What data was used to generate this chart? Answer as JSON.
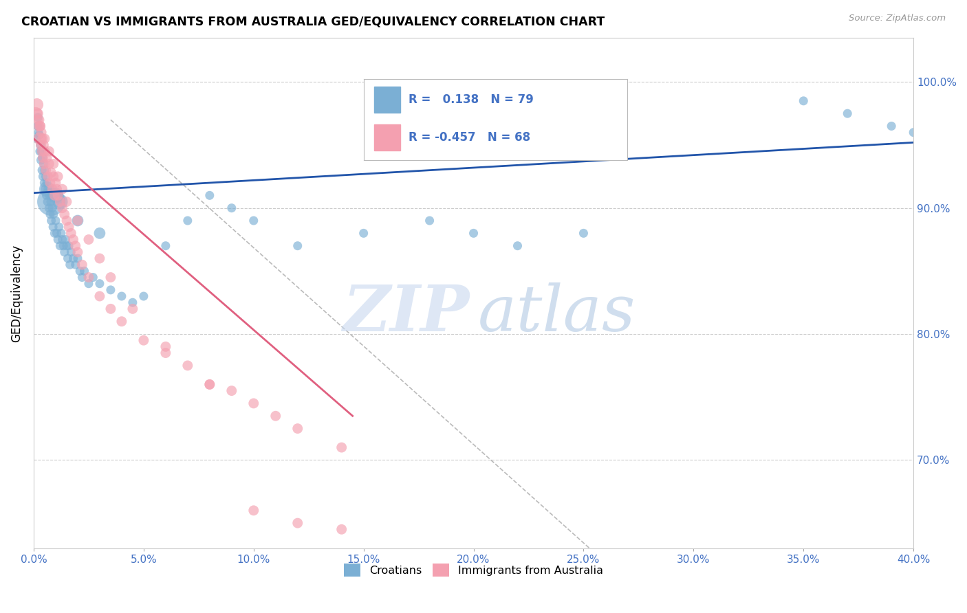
{
  "title": "CROATIAN VS IMMIGRANTS FROM AUSTRALIA GED/EQUIVALENCY CORRELATION CHART",
  "source": "Source: ZipAtlas.com",
  "ylabel": "GED/Equivalency",
  "blue_color": "#7BAFD4",
  "pink_color": "#F4A0B0",
  "blue_line_color": "#2255AA",
  "pink_line_color": "#E06080",
  "xlim": [
    0.0,
    40.0
  ],
  "ylim": [
    63.0,
    103.5
  ],
  "ytick_vals": [
    70.0,
    80.0,
    90.0,
    100.0
  ],
  "xtick_vals": [
    0.0,
    5.0,
    10.0,
    15.0,
    20.0,
    25.0,
    30.0,
    35.0,
    40.0
  ],
  "blue_trend": [
    0.0,
    91.2,
    40.0,
    95.2
  ],
  "pink_trend": [
    0.0,
    95.5,
    14.5,
    73.5
  ],
  "dash_line": [
    3.5,
    97.0,
    40.0,
    40.0
  ],
  "croatians_x": [
    0.15,
    0.18,
    0.2,
    0.22,
    0.25,
    0.28,
    0.3,
    0.33,
    0.35,
    0.38,
    0.4,
    0.42,
    0.45,
    0.48,
    0.5,
    0.52,
    0.55,
    0.58,
    0.6,
    0.63,
    0.65,
    0.7,
    0.72,
    0.75,
    0.78,
    0.8,
    0.85,
    0.88,
    0.9,
    0.95,
    1.0,
    1.05,
    1.1,
    1.15,
    1.2,
    1.25,
    1.3,
    1.35,
    1.4,
    1.45,
    1.5,
    1.55,
    1.6,
    1.65,
    1.7,
    1.8,
    1.9,
    2.0,
    2.1,
    2.2,
    2.3,
    2.5,
    2.7,
    3.0,
    3.5,
    4.0,
    4.5,
    5.0,
    6.0,
    7.0,
    8.0,
    9.0,
    10.0,
    12.0,
    15.0,
    18.0,
    20.0,
    22.0,
    25.0,
    35.0,
    37.0,
    39.0,
    40.0,
    0.6,
    0.8,
    1.0,
    1.2,
    2.0,
    3.0
  ],
  "croatians_y": [
    95.5,
    96.5,
    97.2,
    96.0,
    95.8,
    94.5,
    95.0,
    93.8,
    94.5,
    93.0,
    94.0,
    92.5,
    93.5,
    92.0,
    93.0,
    91.5,
    92.5,
    91.0,
    92.0,
    90.5,
    91.5,
    90.0,
    91.0,
    89.5,
    90.5,
    89.0,
    90.0,
    88.5,
    89.5,
    88.0,
    89.0,
    88.0,
    87.5,
    88.5,
    87.0,
    88.0,
    87.5,
    87.0,
    86.5,
    87.5,
    87.0,
    86.0,
    87.0,
    85.5,
    86.5,
    86.0,
    85.5,
    86.0,
    85.0,
    84.5,
    85.0,
    84.0,
    84.5,
    84.0,
    83.5,
    83.0,
    82.5,
    83.0,
    87.0,
    89.0,
    91.0,
    90.0,
    89.0,
    87.0,
    88.0,
    89.0,
    88.0,
    87.0,
    88.0,
    98.5,
    97.5,
    96.5,
    96.0,
    91.5,
    90.5,
    91.0,
    90.5,
    89.0,
    88.0
  ],
  "croatians_size": [
    7,
    7,
    7,
    7,
    7,
    7,
    7,
    7,
    7,
    7,
    7,
    7,
    7,
    7,
    7,
    7,
    7,
    7,
    7,
    7,
    7,
    7,
    7,
    7,
    7,
    7,
    7,
    7,
    7,
    7,
    7,
    7,
    7,
    7,
    7,
    7,
    7,
    7,
    7,
    7,
    7,
    7,
    7,
    7,
    7,
    7,
    7,
    7,
    7,
    7,
    7,
    7,
    7,
    7,
    7,
    7,
    7,
    7,
    7,
    7,
    7,
    7,
    7,
    7,
    7,
    7,
    7,
    7,
    7,
    7,
    7,
    7,
    7,
    12,
    22,
    12,
    12,
    9,
    9
  ],
  "australia_x": [
    0.1,
    0.15,
    0.18,
    0.2,
    0.23,
    0.25,
    0.28,
    0.3,
    0.33,
    0.35,
    0.38,
    0.4,
    0.42,
    0.45,
    0.48,
    0.5,
    0.55,
    0.6,
    0.65,
    0.7,
    0.75,
    0.8,
    0.85,
    0.9,
    0.95,
    1.0,
    1.05,
    1.1,
    1.2,
    1.3,
    1.4,
    1.5,
    1.6,
    1.7,
    1.8,
    1.9,
    2.0,
    2.2,
    2.5,
    3.0,
    3.5,
    4.0,
    5.0,
    6.0,
    7.0,
    8.0,
    9.0,
    10.0,
    11.0,
    12.0,
    14.0,
    0.3,
    0.5,
    0.7,
    0.9,
    1.1,
    1.3,
    1.5,
    2.0,
    2.5,
    3.0,
    3.5,
    4.5,
    6.0,
    8.0,
    10.0,
    12.0,
    14.0
  ],
  "australia_y": [
    97.5,
    98.2,
    97.0,
    97.5,
    96.5,
    97.0,
    95.5,
    96.5,
    95.0,
    96.0,
    94.5,
    95.5,
    94.0,
    95.0,
    93.5,
    94.5,
    93.0,
    94.0,
    92.5,
    93.5,
    92.0,
    92.8,
    91.5,
    92.5,
    91.0,
    92.0,
    91.5,
    91.0,
    90.5,
    90.0,
    89.5,
    89.0,
    88.5,
    88.0,
    87.5,
    87.0,
    86.5,
    85.5,
    84.5,
    83.0,
    82.0,
    81.0,
    79.5,
    78.5,
    77.5,
    76.0,
    75.5,
    74.5,
    73.5,
    72.5,
    71.0,
    96.5,
    95.5,
    94.5,
    93.5,
    92.5,
    91.5,
    90.5,
    89.0,
    87.5,
    86.0,
    84.5,
    82.0,
    79.0,
    76.0,
    66.0,
    65.0,
    64.5
  ],
  "australia_size": [
    10,
    10,
    8,
    8,
    8,
    8,
    10,
    8,
    8,
    8,
    8,
    8,
    8,
    8,
    8,
    8,
    8,
    8,
    8,
    8,
    8,
    8,
    8,
    8,
    8,
    8,
    8,
    8,
    8,
    8,
    8,
    8,
    8,
    8,
    8,
    8,
    8,
    8,
    8,
    8,
    8,
    8,
    8,
    8,
    8,
    8,
    8,
    8,
    8,
    8,
    8,
    8,
    8,
    8,
    8,
    8,
    8,
    8,
    8,
    8,
    8,
    8,
    8,
    8,
    8,
    8,
    8,
    8
  ]
}
